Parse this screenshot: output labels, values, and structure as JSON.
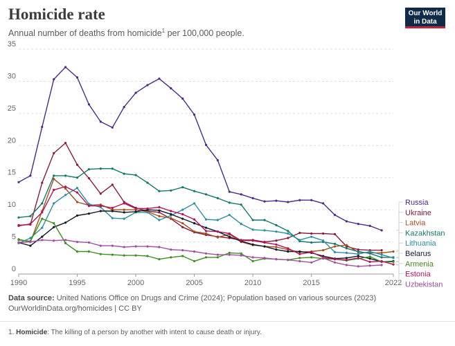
{
  "header": {
    "title": "Homicide rate",
    "subtitle": "Annual number of deaths from homicide",
    "subtitle_sup": "1",
    "subtitle_tail": " per 100,000 people.",
    "logo_line1": "Our World",
    "logo_line2": "in Data"
  },
  "footer": {
    "source_label": "Data source:",
    "source_text": " United Nations Office on Drugs and Crime (2024); Population based on various sources (2023)",
    "link": "OurWorldinData.org/homicides",
    "license": " | CC BY",
    "note_num": "1.",
    "note_term": "Homicide",
    "note_text": ": The killing of a person by another with intent to cause death or injury."
  },
  "chart_data": {
    "type": "line",
    "xlim": [
      1990,
      2022
    ],
    "ylim": [
      0,
      35
    ],
    "x_ticks": [
      "1990",
      "1995",
      "2000",
      "2005",
      "2010",
      "2015",
      "2022"
    ],
    "y_ticks": [
      "0",
      "5",
      "10",
      "15",
      "20",
      "25",
      "30",
      "35"
    ],
    "grid": true,
    "legend_position": "right",
    "series": [
      {
        "name": "Russia",
        "color": "#4c2a85",
        "x": [
          1990,
          1991,
          1992,
          1993,
          1994,
          1995,
          1996,
          1997,
          1998,
          1999,
          2000,
          2001,
          2002,
          2003,
          2004,
          2005,
          2006,
          2007,
          2008,
          2009,
          2010,
          2011,
          2012,
          2013,
          2014,
          2015,
          2016,
          2017,
          2018,
          2019,
          2020,
          2021
        ],
        "y": [
          14.3,
          15.3,
          22.9,
          30.3,
          32.2,
          30.6,
          26.4,
          23.7,
          22.8,
          26.0,
          28.2,
          29.4,
          30.4,
          28.9,
          27.3,
          24.8,
          20.1,
          17.7,
          12.8,
          12.4,
          11.8,
          11.3,
          11.4,
          11.2,
          11.5,
          11.5,
          11.0,
          9.2,
          8.2,
          7.8,
          7.5,
          6.8
        ]
      },
      {
        "name": "Ukraine",
        "color": "#8b1a3a",
        "x": [
          1990,
          1991,
          1992,
          1993,
          1994,
          1995,
          1996,
          1997,
          1998,
          1999,
          2000,
          2001,
          2002,
          2003,
          2004,
          2005,
          2006,
          2007,
          2008,
          2009,
          2010,
          2011,
          2012,
          2013,
          2014,
          2015,
          2016,
          2017,
          2018,
          2019,
          2020,
          2021
        ],
        "y": [
          7.6,
          7.7,
          14.2,
          18.8,
          20.4,
          17.0,
          14.9,
          12.5,
          13.9,
          11.2,
          10.3,
          9.8,
          9.6,
          8.6,
          7.3,
          6.5,
          6.1,
          5.8,
          5.6,
          5.3,
          5.3,
          5.0,
          5.2,
          5.6,
          6.4,
          6.3,
          6.3,
          6.2,
          4.3,
          3.8,
          3.7,
          3.7
        ]
      },
      {
        "name": "Latvia",
        "color": "#a0501e",
        "x": [
          1990,
          1991,
          1992,
          1993,
          1994,
          1995,
          1996,
          1997,
          1998,
          1999,
          2000,
          2001,
          2002,
          2003,
          2004,
          2005,
          2006,
          2007,
          2008,
          2009,
          2010,
          2011,
          2012,
          2013,
          2014,
          2015,
          2016,
          2017,
          2018,
          2019,
          2020,
          2021,
          2022
        ],
        "y": [
          5.4,
          5.0,
          9.8,
          14.8,
          13.3,
          11.2,
          10.7,
          10.8,
          10.0,
          10.0,
          10.0,
          9.7,
          9.0,
          8.7,
          7.9,
          6.6,
          6.3,
          5.7,
          6.2,
          5.0,
          4.5,
          4.3,
          4.2,
          3.8,
          3.4,
          3.5,
          3.7,
          4.3,
          4.5,
          3.4,
          3.3,
          3.3,
          3.5
        ]
      },
      {
        "name": "Kazakhstan",
        "color": "#14766c",
        "x": [
          1990,
          1991,
          1992,
          1993,
          1994,
          1995,
          1996,
          1997,
          1998,
          1999,
          2000,
          2001,
          2002,
          2003,
          2004,
          2005,
          2006,
          2007,
          2008,
          2009,
          2010,
          2011,
          2012,
          2013,
          2014,
          2015,
          2016,
          2017,
          2018,
          2019,
          2020,
          2021,
          2022
        ],
        "y": [
          8.8,
          9.0,
          11.0,
          15.3,
          15.3,
          15.0,
          16.3,
          16.4,
          16.4,
          15.6,
          15.4,
          14.2,
          12.9,
          13.0,
          13.5,
          12.9,
          12.4,
          11.8,
          11.1,
          10.8,
          8.4,
          8.4,
          7.6,
          6.7,
          5.1,
          4.9,
          5.0,
          4.7,
          4.0,
          3.5,
          3.2,
          2.6,
          2.6
        ]
      },
      {
        "name": "Lithuania",
        "color": "#2a8fa3",
        "x": [
          1990,
          1991,
          1992,
          1993,
          1994,
          1995,
          1996,
          1997,
          1998,
          1999,
          2000,
          2001,
          2002,
          2003,
          2004,
          2005,
          2006,
          2007,
          2008,
          2009,
          2010,
          2011,
          2012,
          2013,
          2014,
          2015,
          2016,
          2017,
          2018,
          2019,
          2020,
          2021,
          2022
        ],
        "y": [
          4.8,
          5.6,
          7.2,
          11.0,
          12.3,
          13.4,
          10.9,
          10.4,
          8.7,
          8.6,
          9.6,
          9.6,
          8.4,
          9.1,
          10.0,
          11.0,
          8.5,
          8.4,
          9.2,
          7.8,
          6.9,
          6.8,
          6.6,
          6.3,
          5.3,
          5.8,
          5.2,
          3.4,
          3.3,
          3.1,
          3.5,
          3.0,
          2.5
        ]
      },
      {
        "name": "Belarus",
        "color": "#101827",
        "x": [
          1990,
          1991,
          1992,
          1993,
          1994,
          1995,
          1996,
          1997,
          1998,
          1999,
          2000,
          2001,
          2002,
          2003,
          2004,
          2005,
          2006,
          2007,
          2008,
          2009,
          2010,
          2011,
          2012,
          2013,
          2014,
          2015,
          2016,
          2017,
          2018,
          2019,
          2020,
          2021,
          2022
        ],
        "y": [
          4.9,
          4.4,
          5.8,
          7.3,
          8.0,
          9.1,
          9.4,
          9.8,
          9.8,
          9.6,
          9.7,
          10.0,
          9.9,
          9.3,
          8.6,
          7.9,
          7.2,
          6.6,
          5.8,
          5.1,
          4.6,
          4.3,
          3.8,
          3.5,
          3.5,
          3.3,
          2.8,
          2.4,
          2.5,
          2.8,
          2.4,
          1.9,
          2.0
        ]
      },
      {
        "name": "Armenia",
        "color": "#3e8f1e",
        "x": [
          1990,
          1991,
          1992,
          1993,
          1994,
          1995,
          1996,
          1997,
          1998,
          1999,
          2000,
          2001,
          2002,
          2003,
          2004,
          2005,
          2006,
          2007,
          2008,
          2009,
          2010,
          2011,
          2012,
          2013,
          2014,
          2015,
          2016,
          2017,
          2018,
          2019,
          2020,
          2021,
          2022
        ],
        "y": [
          5.3,
          5.1,
          8.6,
          7.9,
          4.8,
          3.5,
          3.5,
          3.1,
          3.0,
          2.9,
          2.9,
          2.8,
          2.3,
          2.6,
          2.8,
          2.0,
          2.6,
          2.6,
          3.3,
          3.2,
          2.0,
          2.4,
          2.3,
          2.2,
          2.5,
          2.6,
          2.4,
          2.3,
          2.1,
          2.4,
          2.7,
          1.9,
          1.9
        ]
      },
      {
        "name": "Estonia",
        "color": "#b0145a",
        "x": [
          1990,
          1991,
          1992,
          1993,
          1994,
          1995,
          1996,
          1997,
          1998,
          1999,
          2000,
          2001,
          2002,
          2003,
          2004,
          2005,
          2006,
          2007,
          2008,
          2009,
          2010,
          2011,
          2012,
          2013,
          2014,
          2015,
          2016,
          2017,
          2018,
          2019,
          2020,
          2021,
          2022
        ],
        "y": [
          7.5,
          7.8,
          9.6,
          13.1,
          13.6,
          12.7,
          10.6,
          10.6,
          10.3,
          11.0,
          10.2,
          10.2,
          10.4,
          9.8,
          9.3,
          8.5,
          6.7,
          6.6,
          6.3,
          5.2,
          5.2,
          4.9,
          4.6,
          4.0,
          3.1,
          3.4,
          2.6,
          2.3,
          2.2,
          2.5,
          1.9,
          2.0,
          1.5
        ]
      },
      {
        "name": "Uzbekistan",
        "color": "#a34da0",
        "x": [
          1990,
          1991,
          1992,
          1993,
          1994,
          1995,
          1996,
          1997,
          1998,
          1999,
          2000,
          2001,
          2002,
          2003,
          2004,
          2005,
          2006,
          2007,
          2008,
          2009,
          2010,
          2011,
          2012,
          2013,
          2014,
          2015,
          2016,
          2017,
          2018,
          2019,
          2020,
          2021
        ],
        "y": [
          4.9,
          5.0,
          5.3,
          5.2,
          5.3,
          5.0,
          4.9,
          4.4,
          4.4,
          4.2,
          4.3,
          4.3,
          4.2,
          3.8,
          3.7,
          3.5,
          3.2,
          3.0,
          3.0,
          2.9,
          2.6,
          2.5,
          2.3,
          2.2,
          2.0,
          1.8,
          2.5,
          1.8,
          1.4,
          1.2,
          1.3,
          1.4
        ]
      }
    ]
  }
}
